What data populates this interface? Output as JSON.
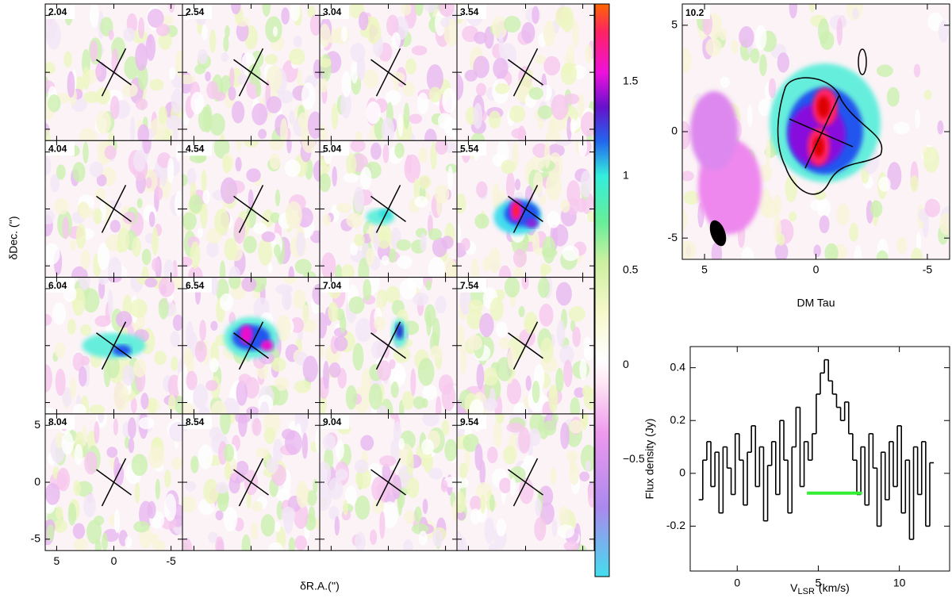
{
  "chart_data": [
    {
      "type": "image",
      "panel_labels": [
        "2.04",
        "2.54",
        "3.04",
        "3.54",
        "4.04",
        "4.54",
        "5.04",
        "5.54",
        "6.04",
        "6.54",
        "7.04",
        "7.54",
        "8.04",
        "8.54",
        "9.04",
        "9.54"
      ],
      "x_label": "δR.A.('')",
      "y_label": "δDec. ('')",
      "xlim": [
        6,
        -6
      ],
      "ylim": [
        -6,
        6
      ],
      "xticks": [
        5,
        0,
        -5
      ],
      "yticks": [
        -5,
        0,
        5
      ],
      "colorbar": {
        "lim": [
          -1.12,
          1.91
        ],
        "ticks": [
          {
            "value": -0.5,
            "label": "−0.5"
          },
          0,
          0.5,
          1,
          1.5
        ]
      }
    },
    {
      "type": "image",
      "panel_label": "10.2",
      "x_label": "DM Tau",
      "xlim": [
        6,
        -6
      ],
      "ylim": [
        -6,
        6
      ],
      "xticks": [
        5,
        0,
        -5
      ],
      "yticks": [
        -5,
        0,
        5
      ]
    },
    {
      "type": "line",
      "drawstyle": "steps-mid",
      "color": "#000000",
      "x_label": {
        "main": "V",
        "sub": "LSR",
        "unit": "(km/s)"
      },
      "y_label": "Flux density (Jy)",
      "xlim": [
        -2.9,
        13.1
      ],
      "ylim": [
        -0.37,
        0.48
      ],
      "xticks": [
        0,
        5,
        10
      ],
      "yticks": [
        -0.2,
        0,
        0.2,
        0.4
      ],
      "x": [
        -2.25,
        -2,
        -1.75,
        -1.5,
        -1.25,
        -1,
        -0.75,
        -0.5,
        -0.25,
        0,
        0.25,
        0.5,
        0.75,
        1,
        1.25,
        1.5,
        1.75,
        2,
        2.25,
        2.5,
        2.75,
        3,
        3.25,
        3.5,
        3.75,
        4,
        4.25,
        4.5,
        4.75,
        5,
        5.25,
        5.5,
        5.75,
        6,
        6.25,
        6.5,
        6.75,
        7,
        7.25,
        7.5,
        7.75,
        8,
        8.25,
        8.5,
        8.75,
        9,
        9.25,
        9.5,
        9.75,
        10,
        10.25,
        10.5,
        10.75,
        11,
        11.25,
        11.5,
        11.75,
        12
      ],
      "values": [
        -0.1,
        0.05,
        0.12,
        -0.05,
        0.08,
        -0.15,
        0.1,
        0.02,
        -0.08,
        0.15,
        0.05,
        -0.12,
        0.08,
        0.18,
        -0.05,
        0.1,
        -0.18,
        0.03,
        0.12,
        -0.08,
        0.2,
        0.05,
        -0.15,
        0.1,
        0.25,
        -0.05,
        0.12,
        0.05,
        0.15,
        0.3,
        0.38,
        0.43,
        0.35,
        0.3,
        0.25,
        0.2,
        0.27,
        0.15,
        0.05,
        -0.08,
        0.1,
        -0.12,
        0.15,
        0.02,
        -0.2,
        0.08,
        -0.1,
        0.12,
        -0.05,
        0.18,
        -0.15,
        0.05,
        -0.25,
        0.1,
        -0.08,
        0.12,
        -0.2,
        0.04
      ],
      "range_bar": {
        "from": 4.3,
        "to": 7.7,
        "level": -0.075,
        "color": "#33ee33"
      }
    }
  ]
}
